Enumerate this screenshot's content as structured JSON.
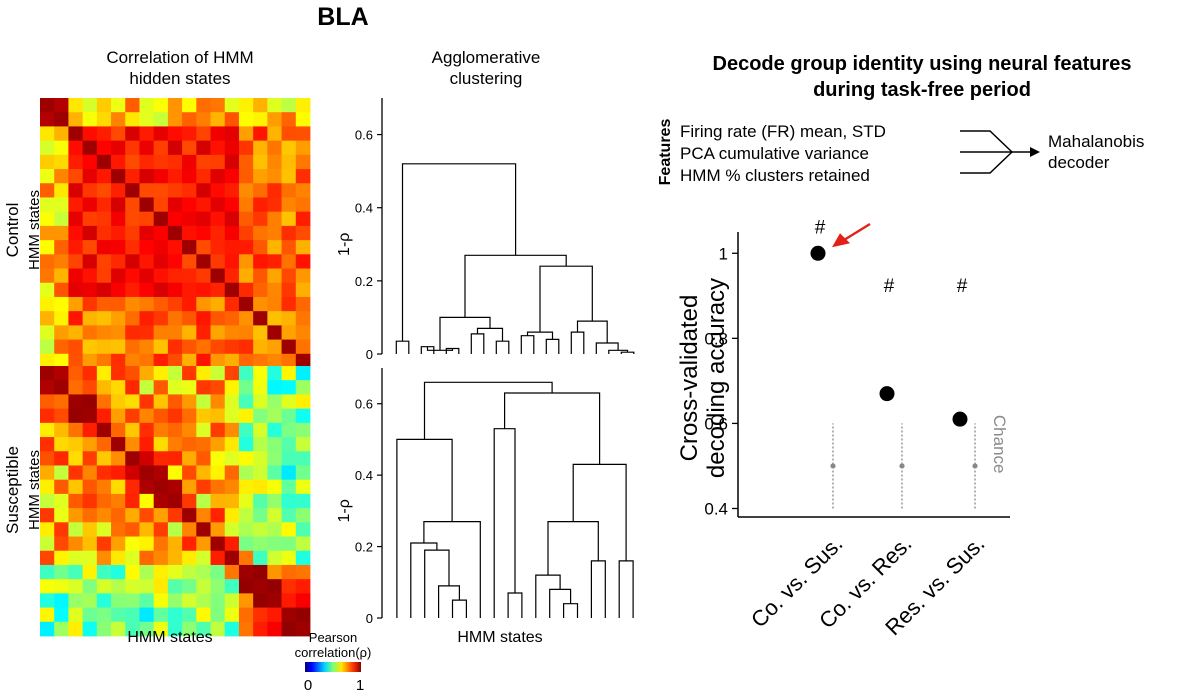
{
  "figure": {
    "region_title": "BLA",
    "heatmap_title": [
      "Correlation of HMM",
      "hidden states"
    ],
    "dendro_title": [
      "Agglomerative",
      "clustering"
    ],
    "row_label_control": [
      "Control",
      "HMM states"
    ],
    "row_label_susceptible": [
      "Susceptible",
      "HMM states"
    ],
    "heatmap_xlabel": "HMM states",
    "dendro_xlabel": "HMM states",
    "colorbar_title": [
      "Pearson",
      "correlation(ρ)"
    ],
    "colorbar_min": "0",
    "colorbar_max": "1",
    "decode_title": [
      "Decode group identity using neural features",
      "during task-free period"
    ],
    "features_label": "Features",
    "features": [
      "Firing rate (FR) mean, STD",
      "PCA cumulative variance",
      "HMM % clusters retained"
    ],
    "decoder_label": [
      "Mahalanobis",
      "decoder"
    ],
    "colors": {
      "marker": "#000000",
      "chance": "#888888",
      "arrow": "#e32119",
      "chance_label": "#8a8a8a"
    }
  },
  "chart_data": [
    {
      "type": "heatmap",
      "title": "Correlation of HMM hidden states (Control)",
      "xlabel": "HMM states",
      "ylabel": "Control HMM states",
      "n_states": 19,
      "colorscale": "jet",
      "value_range": [
        0,
        1
      ]
    },
    {
      "type": "heatmap",
      "title": "Correlation of HMM hidden states (Susceptible)",
      "xlabel": "HMM states",
      "ylabel": "Susceptible HMM states",
      "n_states": 19,
      "colorscale": "jet",
      "value_range": [
        0,
        1
      ]
    },
    {
      "type": "dendrogram",
      "title": "Agglomerative clustering (Control)",
      "ylabel": "1-ρ",
      "ylim": [
        0,
        0.7
      ],
      "yticks": [
        "0",
        "0.2",
        "0.4",
        "0.6"
      ],
      "root_height": 0.52,
      "merge_heights": [
        0.52,
        0.27,
        0.24,
        0.1,
        0.09,
        0.07,
        0.07,
        0.06,
        0.06,
        0.05,
        0.05,
        0.05,
        0.04,
        0.04,
        0.03,
        0.03,
        0.02,
        0.01
      ]
    },
    {
      "type": "dendrogram",
      "title": "Agglomerative clustering (Susceptible)",
      "ylabel": "1-ρ",
      "xlabel": "HMM states",
      "ylim": [
        0,
        0.7
      ],
      "yticks": [
        "0",
        "0.2",
        "0.4",
        "0.6"
      ],
      "root_height": 0.66,
      "merge_heights": [
        0.66,
        0.63,
        0.5,
        0.53,
        0.43,
        0.27,
        0.27,
        0.19,
        0.16,
        0.14,
        0.12,
        0.09,
        0.08,
        0.06,
        0.05,
        0.04,
        0.16,
        0.14
      ]
    },
    {
      "type": "scatter",
      "title": "Decode group identity using neural features during task-free period",
      "ylabel": "Cross-validated decoding accuracy",
      "ylim": [
        0.38,
        1.05
      ],
      "yticks": [
        "0.4",
        "0.6",
        "0.8",
        "1"
      ],
      "categories": [
        "Co. vs. Sus.",
        "Co. vs. Res.",
        "Res. vs. Sus."
      ],
      "values": [
        1.0,
        0.67,
        0.61
      ],
      "significance": [
        "#",
        "#",
        "#"
      ],
      "chance": {
        "label": "Chance",
        "mean": 0.5,
        "low": 0.4,
        "high": 0.6
      }
    }
  ]
}
